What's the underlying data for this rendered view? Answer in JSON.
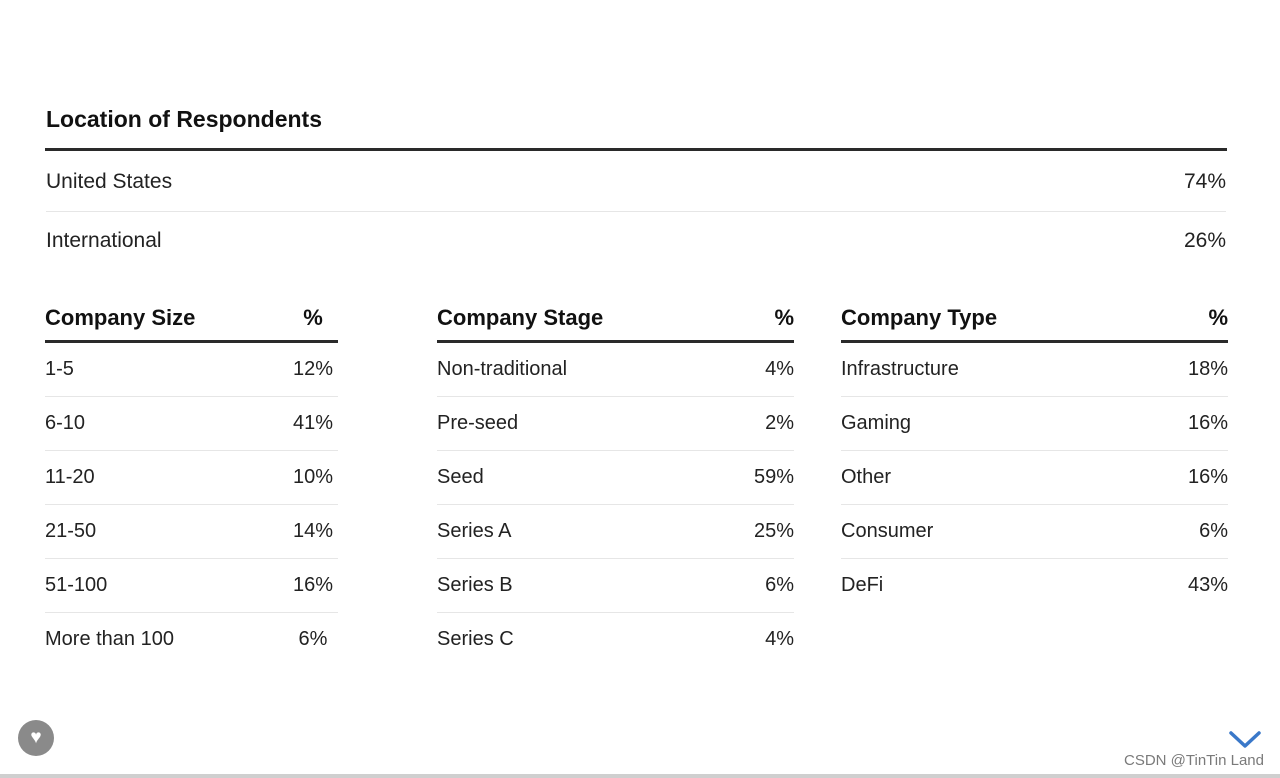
{
  "location": {
    "title": "Location of Respondents",
    "rows": [
      {
        "label": "United States",
        "value": "74%"
      },
      {
        "label": "International",
        "value": "26%"
      }
    ]
  },
  "company_size": {
    "header": "Company Size",
    "pct_header": "%",
    "rows": [
      {
        "label": "1-5",
        "value": "12%"
      },
      {
        "label": "6-10",
        "value": "41%"
      },
      {
        "label": "11-20",
        "value": "10%"
      },
      {
        "label": "21-50",
        "value": "14%"
      },
      {
        "label": "51-100",
        "value": "16%"
      },
      {
        "label": "More than 100",
        "value": "6%"
      }
    ]
  },
  "company_stage": {
    "header": "Company Stage",
    "pct_header": "%",
    "rows": [
      {
        "label": "Non-traditional",
        "value": "4%"
      },
      {
        "label": "Pre-seed",
        "value": "2%"
      },
      {
        "label": "Seed",
        "value": "59%"
      },
      {
        "label": "Series A",
        "value": "25%"
      },
      {
        "label": "Series B",
        "value": "6%"
      },
      {
        "label": "Series C",
        "value": "4%"
      }
    ]
  },
  "company_type": {
    "header": "Company Type",
    "pct_header": "%",
    "rows": [
      {
        "label": "Infrastructure",
        "value": "18%"
      },
      {
        "label": "Gaming",
        "value": "16%"
      },
      {
        "label": "Other",
        "value": "16%"
      },
      {
        "label": "Consumer",
        "value": "6%"
      },
      {
        "label": "DeFi",
        "value": "43%"
      }
    ]
  },
  "footer": {
    "watermark": "CSDN @TinTin Land",
    "like_icon": "heart-icon",
    "scroll_icon": "chevron-down-icon",
    "accent_color": "#3a78c9"
  }
}
